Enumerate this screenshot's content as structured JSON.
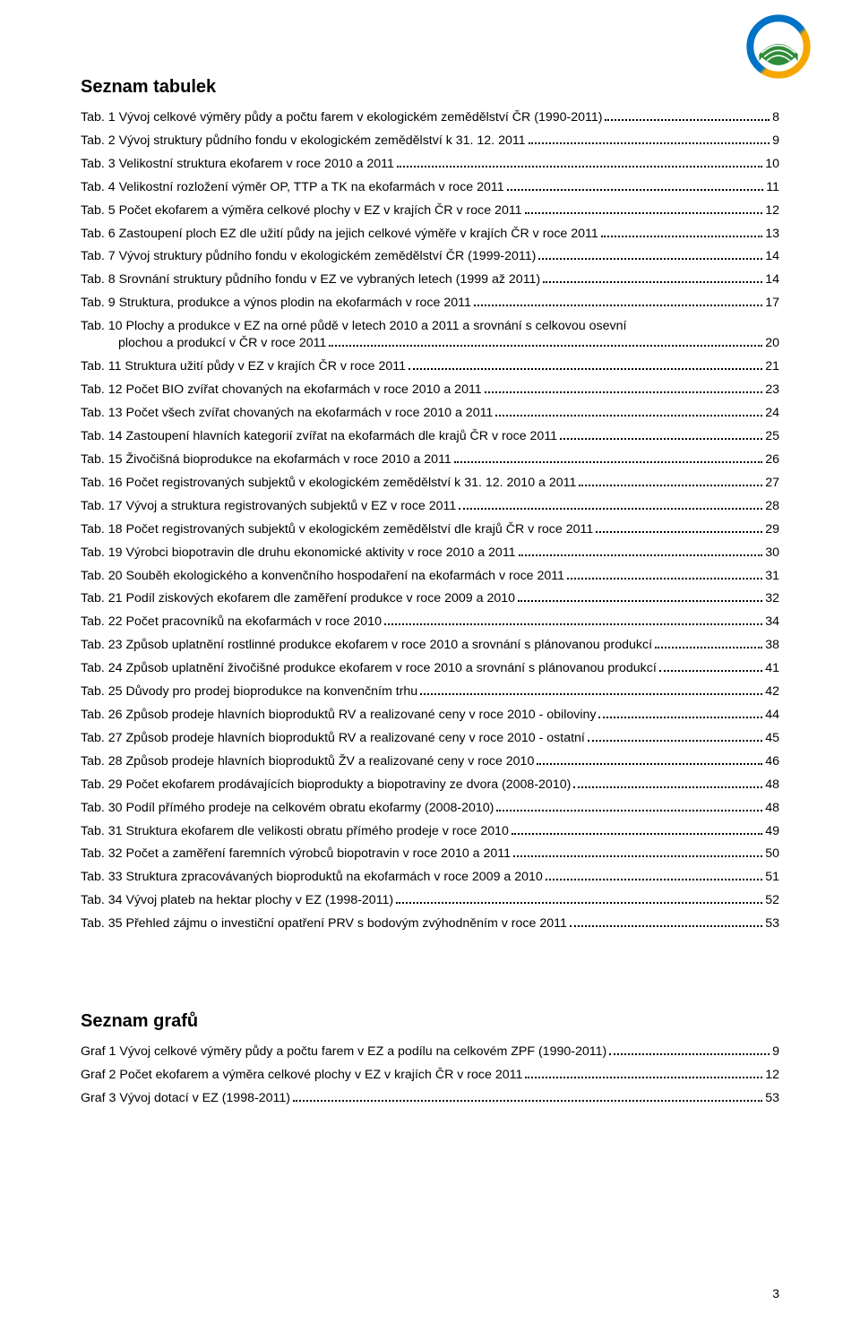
{
  "logo": {
    "outer_ring_color1": "#0073c6",
    "outer_ring_color2": "#f5a700",
    "field_color": "#2f8c3a",
    "background": "#ffffff"
  },
  "section_tables_title": "Seznam tabulek",
  "section_charts_title": "Seznam grafů",
  "page_number": "3",
  "tables": [
    {
      "label": "Tab. 1 Vývoj celkové výměry půdy a počtu farem v ekologickém zemědělství ČR (1990-2011)",
      "page": "8",
      "indent": false
    },
    {
      "label": "Tab. 2 Vývoj struktury půdního fondu v ekologickém zemědělství k 31. 12. 2011",
      "page": "9",
      "indent": false
    },
    {
      "label": "Tab. 3 Velikostní struktura ekofarem v roce 2010 a 2011",
      "page": "10",
      "indent": false
    },
    {
      "label": "Tab. 4 Velikostní rozložení výměr OP, TTP a TK na ekofarmách v roce 2011",
      "page": "11",
      "indent": false
    },
    {
      "label": "Tab. 5 Počet ekofarem a výměra celkové plochy v EZ v krajích ČR v roce 2011",
      "page": "12",
      "indent": false
    },
    {
      "label": "Tab. 6 Zastoupení ploch EZ dle užití půdy na jejich celkové výměře v krajích ČR v roce 2011",
      "page": "13",
      "indent": false
    },
    {
      "label": "Tab. 7 Vývoj struktury půdního fondu v ekologickém zemědělství ČR (1999-2011)",
      "page": "14",
      "indent": false
    },
    {
      "label": "Tab. 8 Srovnání struktury půdního fondu v EZ ve vybraných letech (1999 až 2011)",
      "page": "14",
      "indent": false
    },
    {
      "label": "Tab. 9 Struktura, produkce a výnos plodin na ekofarmách v roce 2011",
      "page": "17",
      "indent": false
    },
    {
      "label_line1": "Tab. 10 Plochy a produkce v EZ na orné půdě v letech 2010 a 2011 a srovnání s celkovou osevní",
      "label_line2": "plochou a produkcí v ČR v roce 2011",
      "page": "20",
      "indent": false,
      "multiline": true
    },
    {
      "label": "Tab. 11 Struktura užití půdy v EZ v krajích ČR v roce 2011",
      "page": "21",
      "indent": false
    },
    {
      "label": "Tab. 12 Počet BIO zvířat chovaných na ekofarmách v roce 2010 a 2011",
      "page": "23",
      "indent": false
    },
    {
      "label": "Tab. 13 Počet všech zvířat chovaných na ekofarmách v roce 2010 a 2011",
      "page": "24",
      "indent": false
    },
    {
      "label": "Tab. 14 Zastoupení hlavních kategorií zvířat na ekofarmách dle krajů ČR v roce 2011",
      "page": "25",
      "indent": false
    },
    {
      "label": "Tab. 15 Živočišná bioprodukce na ekofarmách v roce 2010 a 2011",
      "page": "26",
      "indent": false
    },
    {
      "label": "Tab. 16 Počet registrovaných subjektů v ekologickém zemědělství k 31. 12. 2010 a 2011",
      "page": "27",
      "indent": false
    },
    {
      "label": "Tab. 17 Vývoj a struktura registrovaných subjektů v EZ v roce 2011",
      "page": "28",
      "indent": false
    },
    {
      "label": "Tab. 18 Počet registrovaných subjektů v ekologickém zemědělství dle krajů ČR v roce 2011",
      "page": "29",
      "indent": false
    },
    {
      "label": "Tab. 19 Výrobci biopotravin dle druhu ekonomické aktivity v roce 2010 a 2011",
      "page": "30",
      "indent": false
    },
    {
      "label": "Tab. 20 Souběh ekologického a konvenčního hospodaření na ekofarmách v roce 2011",
      "page": "31",
      "indent": false
    },
    {
      "label": "Tab. 21 Podíl ziskových ekofarem dle zaměření produkce v roce 2009 a 2010",
      "page": "32",
      "indent": false
    },
    {
      "label": "Tab. 22 Počet pracovníků na ekofarmách v roce 2010",
      "page": "34",
      "indent": false
    },
    {
      "label": "Tab. 23 Způsob uplatnění rostlinné produkce ekofarem v roce 2010 a srovnání s plánovanou produkcí",
      "page": "38",
      "indent": false
    },
    {
      "label": "Tab. 24 Způsob uplatnění živočišné produkce ekofarem v roce 2010 a srovnání s plánovanou produkcí",
      "page": "41",
      "indent": false
    },
    {
      "label": "Tab. 25 Důvody pro prodej bioprodukce na konvenčním trhu",
      "page": "42",
      "indent": false
    },
    {
      "label": "Tab. 26 Způsob prodeje hlavních bioproduktů RV a realizované ceny v roce 2010 - obiloviny",
      "page": "44",
      "indent": false
    },
    {
      "label": "Tab. 27 Způsob prodeje hlavních bioproduktů RV a realizované ceny v roce 2010 - ostatní",
      "page": "45",
      "indent": false
    },
    {
      "label": "Tab. 28 Způsob prodeje hlavních bioproduktů ŽV a realizované ceny v roce 2010",
      "page": "46",
      "indent": false
    },
    {
      "label": "Tab. 29 Počet ekofarem prodávajících bioprodukty a biopotraviny ze dvora (2008-2010)",
      "page": "48",
      "indent": false
    },
    {
      "label": "Tab. 30 Podíl přímého prodeje na celkovém obratu ekofarmy (2008-2010)",
      "page": "48",
      "indent": false
    },
    {
      "label": "Tab. 31 Struktura ekofarem dle velikosti obratu přímého prodeje v roce 2010",
      "page": "49",
      "indent": false
    },
    {
      "label": "Tab. 32 Počet a zaměření faremních výrobců biopotravin v roce 2010 a 2011",
      "page": "50",
      "indent": false
    },
    {
      "label": "Tab. 33 Struktura zpracovávaných bioproduktů na ekofarmách v roce 2009 a 2010",
      "page": "51",
      "indent": false
    },
    {
      "label": "Tab. 34 Vývoj plateb na hektar plochy v EZ (1998-2011)",
      "page": "52",
      "indent": false
    },
    {
      "label": "Tab. 35 Přehled zájmu o investiční opatření PRV s bodovým zvýhodněním v roce 2011",
      "page": "53",
      "indent": false
    }
  ],
  "charts": [
    {
      "label": "Graf 1 Vývoj celkové výměry půdy a počtu farem v EZ a podílu na celkovém ZPF (1990-2011)",
      "page": "9"
    },
    {
      "label": "Graf 2 Počet ekofarem a výměra celkové plochy v EZ v krajích ČR v roce 2011",
      "page": "12"
    },
    {
      "label": "Graf 3 Vývoj dotací v EZ (1998-2011)",
      "page": "53"
    }
  ]
}
